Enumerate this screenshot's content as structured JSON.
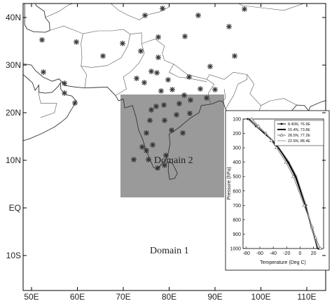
{
  "map": {
    "lon_ticks": [
      {
        "value": 50,
        "label": "50E"
      },
      {
        "value": 60,
        "label": "60E"
      },
      {
        "value": 70,
        "label": "70E"
      },
      {
        "value": 80,
        "label": "80E"
      },
      {
        "value": 90,
        "label": "90E"
      },
      {
        "value": 100,
        "label": "100E"
      },
      {
        "value": 110,
        "label": "110E"
      }
    ],
    "lat_ticks": [
      {
        "value": 40,
        "label": "40N"
      },
      {
        "value": 30,
        "label": "30N"
      },
      {
        "value": 20,
        "label": "20N"
      },
      {
        "value": 10,
        "label": "10N"
      },
      {
        "value": 0,
        "label": "EQ"
      },
      {
        "value": -10,
        "label": "10S"
      }
    ],
    "domain1_label": "Domain 1",
    "domain2_label": "Domain 2"
  },
  "chart_data": {
    "type": "line",
    "xlabel": "Temperature (Deg C)",
    "ylabel": "Pressure (hPa)",
    "y": [
      100,
      150,
      200,
      250,
      300,
      400,
      500,
      700,
      850,
      925,
      1000
    ],
    "xlim": [
      -85,
      35
    ],
    "xticks": [
      -80,
      -60,
      -40,
      -20,
      0,
      20
    ],
    "ylim": [
      100,
      1000
    ],
    "yticks": [
      100,
      200,
      300,
      400,
      500,
      600,
      700,
      800,
      900,
      1000
    ],
    "y_inverted": true,
    "legend": "upper right",
    "series": [
      {
        "name": "8.40N, 76.9E",
        "color": "#000000",
        "marker": "circle",
        "linewidth": 1,
        "values": [
          -78,
          -66,
          -52,
          -42,
          -33,
          -17,
          -6,
          9,
          17,
          22,
          27
        ]
      },
      {
        "name": "15.4N, 73.8E",
        "color": "#000000",
        "marker": "none",
        "linewidth": 2,
        "values": [
          -77,
          -65,
          -53,
          -41,
          -32,
          -18,
          -7,
          8,
          17,
          22,
          26
        ]
      },
      {
        "name": "28.5N, 77.2E",
        "color": "#777777",
        "marker": "triangle",
        "linewidth": 1,
        "values": [
          -72,
          -62,
          -51,
          -43,
          -35,
          -21,
          -10,
          6,
          18,
          23,
          30
        ]
      },
      {
        "name": "22.6N, 88.4E",
        "color": "#999999",
        "marker": "none",
        "linewidth": 1,
        "values": [
          -78,
          -65,
          -51,
          -40,
          -31,
          -16,
          -5,
          9,
          17,
          22,
          27
        ]
      }
    ]
  }
}
